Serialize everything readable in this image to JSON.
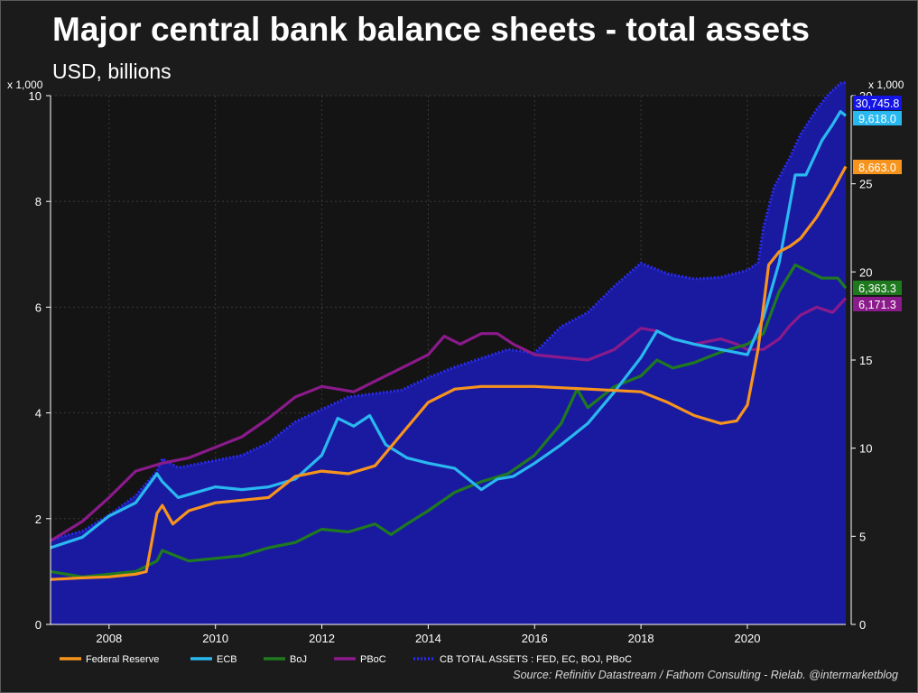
{
  "title": "Major central bank balance sheets - total assets",
  "subtitle": "USD, billions",
  "source": "Source: Refinitiv Datastream / Fathom Consulting - Rielab. @intermarketblog",
  "chart_data": {
    "type": "line",
    "x_ticks": [
      "2008",
      "2010",
      "2012",
      "2014",
      "2016",
      "2018",
      "2020"
    ],
    "left_axis": {
      "unit_label": "x 1,000",
      "range": [
        0,
        10
      ],
      "ticks": [
        "0",
        "2",
        "4",
        "6",
        "8",
        "10"
      ]
    },
    "right_axis": {
      "unit_label": "x 1,000",
      "range": [
        0,
        30
      ],
      "ticks": [
        "0",
        "5",
        "10",
        "15",
        "20",
        "25",
        "30"
      ]
    },
    "x_range": [
      2006.9,
      2021.85
    ],
    "grid": true,
    "legend_position": "bottom",
    "series": [
      {
        "name": "CB TOTAL ASSETS : FED, EC, BOJ, PBoC",
        "axis": "right",
        "color": "#1a1aa8",
        "style": "area-dotted",
        "end_label": "30,745.8",
        "points": [
          [
            2006.9,
            4.8
          ],
          [
            2007.5,
            5.3
          ],
          [
            2008.0,
            6.2
          ],
          [
            2008.5,
            7.3
          ],
          [
            2008.9,
            8.7
          ],
          [
            2009.0,
            9.4
          ],
          [
            2009.3,
            8.9
          ],
          [
            2010.0,
            9.3
          ],
          [
            2010.5,
            9.6
          ],
          [
            2011.0,
            10.3
          ],
          [
            2011.5,
            11.5
          ],
          [
            2012.0,
            12.2
          ],
          [
            2012.5,
            12.9
          ],
          [
            2013.0,
            13.1
          ],
          [
            2013.5,
            13.3
          ],
          [
            2014.0,
            14.0
          ],
          [
            2014.5,
            14.6
          ],
          [
            2015.0,
            15.1
          ],
          [
            2015.5,
            15.6
          ],
          [
            2016.0,
            15.4
          ],
          [
            2016.5,
            16.9
          ],
          [
            2017.0,
            17.7
          ],
          [
            2017.5,
            19.2
          ],
          [
            2018.0,
            20.5
          ],
          [
            2018.5,
            19.9
          ],
          [
            2019.0,
            19.6
          ],
          [
            2019.5,
            19.7
          ],
          [
            2020.0,
            20.1
          ],
          [
            2020.2,
            20.5
          ],
          [
            2020.3,
            22.5
          ],
          [
            2020.5,
            24.8
          ],
          [
            2020.8,
            26.5
          ],
          [
            2021.0,
            27.8
          ],
          [
            2021.3,
            29.2
          ],
          [
            2021.5,
            30.0
          ],
          [
            2021.75,
            30.7
          ],
          [
            2021.85,
            30.75
          ]
        ]
      },
      {
        "name": "PBoC",
        "axis": "left",
        "color": "#8b1a8b",
        "end_label": "6,171.3",
        "points": [
          [
            2006.9,
            1.58
          ],
          [
            2007.5,
            1.95
          ],
          [
            2008.0,
            2.4
          ],
          [
            2008.5,
            2.9
          ],
          [
            2009.0,
            3.05
          ],
          [
            2009.5,
            3.15
          ],
          [
            2010.0,
            3.35
          ],
          [
            2010.5,
            3.55
          ],
          [
            2011.0,
            3.9
          ],
          [
            2011.5,
            4.3
          ],
          [
            2012.0,
            4.5
          ],
          [
            2012.3,
            4.45
          ],
          [
            2012.6,
            4.4
          ],
          [
            2013.0,
            4.6
          ],
          [
            2013.5,
            4.85
          ],
          [
            2014.0,
            5.1
          ],
          [
            2014.3,
            5.45
          ],
          [
            2014.6,
            5.3
          ],
          [
            2015.0,
            5.5
          ],
          [
            2015.3,
            5.5
          ],
          [
            2015.6,
            5.3
          ],
          [
            2016.0,
            5.1
          ],
          [
            2016.5,
            5.05
          ],
          [
            2017.0,
            5.0
          ],
          [
            2017.5,
            5.2
          ],
          [
            2018.0,
            5.6
          ],
          [
            2018.3,
            5.55
          ],
          [
            2018.6,
            5.4
          ],
          [
            2019.0,
            5.3
          ],
          [
            2019.5,
            5.4
          ],
          [
            2019.8,
            5.3
          ],
          [
            2020.0,
            5.2
          ],
          [
            2020.3,
            5.2
          ],
          [
            2020.6,
            5.4
          ],
          [
            2020.8,
            5.65
          ],
          [
            2021.0,
            5.85
          ],
          [
            2021.3,
            6.0
          ],
          [
            2021.6,
            5.9
          ],
          [
            2021.85,
            6.17
          ]
        ]
      },
      {
        "name": "BoJ",
        "axis": "left",
        "color": "#1f7a1f",
        "end_label": "6,363.3",
        "points": [
          [
            2006.9,
            1.0
          ],
          [
            2007.5,
            0.9
          ],
          [
            2008.0,
            0.95
          ],
          [
            2008.5,
            1.0
          ],
          [
            2008.9,
            1.2
          ],
          [
            2009.0,
            1.4
          ],
          [
            2009.5,
            1.2
          ],
          [
            2010.0,
            1.25
          ],
          [
            2010.5,
            1.3
          ],
          [
            2011.0,
            1.45
          ],
          [
            2011.5,
            1.55
          ],
          [
            2012.0,
            1.8
          ],
          [
            2012.5,
            1.75
          ],
          [
            2013.0,
            1.9
          ],
          [
            2013.3,
            1.7
          ],
          [
            2013.6,
            1.9
          ],
          [
            2014.0,
            2.15
          ],
          [
            2014.5,
            2.5
          ],
          [
            2015.0,
            2.7
          ],
          [
            2015.5,
            2.85
          ],
          [
            2016.0,
            3.2
          ],
          [
            2016.5,
            3.8
          ],
          [
            2016.8,
            4.45
          ],
          [
            2017.0,
            4.1
          ],
          [
            2017.5,
            4.5
          ],
          [
            2018.0,
            4.7
          ],
          [
            2018.3,
            5.0
          ],
          [
            2018.6,
            4.85
          ],
          [
            2019.0,
            4.95
          ],
          [
            2019.5,
            5.15
          ],
          [
            2020.0,
            5.3
          ],
          [
            2020.3,
            5.5
          ],
          [
            2020.6,
            6.3
          ],
          [
            2020.9,
            6.8
          ],
          [
            2021.1,
            6.7
          ],
          [
            2021.4,
            6.55
          ],
          [
            2021.7,
            6.55
          ],
          [
            2021.85,
            6.36
          ]
        ]
      },
      {
        "name": "ECB",
        "axis": "left",
        "color": "#2ab8f0",
        "end_label": "9,618.0",
        "points": [
          [
            2006.9,
            1.45
          ],
          [
            2007.5,
            1.65
          ],
          [
            2008.0,
            2.05
          ],
          [
            2008.5,
            2.3
          ],
          [
            2008.9,
            2.85
          ],
          [
            2009.0,
            2.7
          ],
          [
            2009.3,
            2.4
          ],
          [
            2010.0,
            2.6
          ],
          [
            2010.5,
            2.55
          ],
          [
            2011.0,
            2.6
          ],
          [
            2011.5,
            2.75
          ],
          [
            2012.0,
            3.2
          ],
          [
            2012.3,
            3.9
          ],
          [
            2012.6,
            3.75
          ],
          [
            2012.9,
            3.95
          ],
          [
            2013.2,
            3.4
          ],
          [
            2013.6,
            3.15
          ],
          [
            2014.0,
            3.05
          ],
          [
            2014.5,
            2.95
          ],
          [
            2015.0,
            2.55
          ],
          [
            2015.3,
            2.75
          ],
          [
            2015.6,
            2.8
          ],
          [
            2016.0,
            3.05
          ],
          [
            2016.5,
            3.4
          ],
          [
            2017.0,
            3.8
          ],
          [
            2017.5,
            4.4
          ],
          [
            2018.0,
            5.05
          ],
          [
            2018.3,
            5.55
          ],
          [
            2018.6,
            5.4
          ],
          [
            2019.0,
            5.3
          ],
          [
            2019.5,
            5.2
          ],
          [
            2020.0,
            5.1
          ],
          [
            2020.3,
            5.8
          ],
          [
            2020.6,
            6.85
          ],
          [
            2020.9,
            8.5
          ],
          [
            2021.1,
            8.5
          ],
          [
            2021.4,
            9.15
          ],
          [
            2021.6,
            9.45
          ],
          [
            2021.75,
            9.7
          ],
          [
            2021.85,
            9.62
          ]
        ]
      },
      {
        "name": "Federal Reserve",
        "axis": "left",
        "color": "#f7941d",
        "end_label": "8,663.0",
        "points": [
          [
            2006.9,
            0.85
          ],
          [
            2007.5,
            0.88
          ],
          [
            2008.0,
            0.9
          ],
          [
            2008.5,
            0.95
          ],
          [
            2008.7,
            1.0
          ],
          [
            2008.9,
            2.1
          ],
          [
            2009.0,
            2.25
          ],
          [
            2009.2,
            1.9
          ],
          [
            2009.5,
            2.15
          ],
          [
            2010.0,
            2.3
          ],
          [
            2010.5,
            2.35
          ],
          [
            2011.0,
            2.4
          ],
          [
            2011.5,
            2.8
          ],
          [
            2012.0,
            2.9
          ],
          [
            2012.5,
            2.85
          ],
          [
            2013.0,
            3.0
          ],
          [
            2013.5,
            3.6
          ],
          [
            2014.0,
            4.2
          ],
          [
            2014.5,
            4.45
          ],
          [
            2015.0,
            4.5
          ],
          [
            2016.0,
            4.5
          ],
          [
            2017.0,
            4.45
          ],
          [
            2018.0,
            4.4
          ],
          [
            2018.5,
            4.2
          ],
          [
            2019.0,
            3.95
          ],
          [
            2019.5,
            3.8
          ],
          [
            2019.8,
            3.85
          ],
          [
            2020.0,
            4.15
          ],
          [
            2020.2,
            5.2
          ],
          [
            2020.4,
            6.8
          ],
          [
            2020.6,
            7.05
          ],
          [
            2020.8,
            7.15
          ],
          [
            2021.0,
            7.3
          ],
          [
            2021.3,
            7.7
          ],
          [
            2021.6,
            8.2
          ],
          [
            2021.85,
            8.66
          ]
        ]
      }
    ]
  }
}
